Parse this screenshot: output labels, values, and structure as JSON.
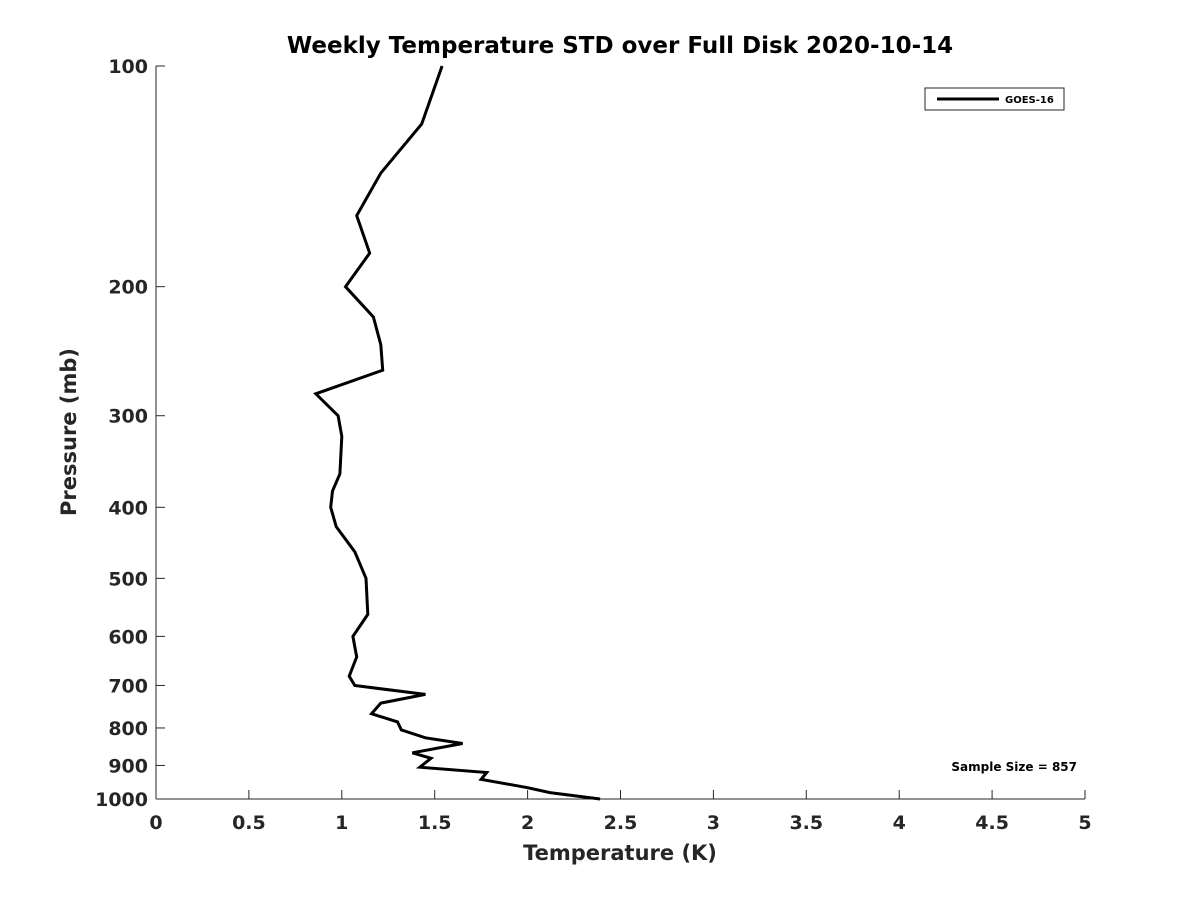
{
  "chart_data": {
    "type": "line",
    "title": "Weekly Temperature STD over Full Disk 2020-10-14",
    "xlabel": "Temperature (K)",
    "ylabel": "Pressure (mb)",
    "xlim": [
      0,
      5
    ],
    "ylim": [
      100,
      1000
    ],
    "yscale": "log",
    "y_reversed": true,
    "grid": false,
    "xticks": [
      "0",
      "0.5",
      "1",
      "1.5",
      "2",
      "2.5",
      "3",
      "3.5",
      "4",
      "4.5",
      "5"
    ],
    "xtick_values": [
      0,
      0.5,
      1,
      1.5,
      2,
      2.5,
      3,
      3.5,
      4,
      4.5,
      5
    ],
    "yticks": [
      "100",
      "200",
      "300",
      "400",
      "500",
      "600",
      "700",
      "800",
      "900",
      "1000"
    ],
    "ytick_values": [
      100,
      200,
      300,
      400,
      500,
      600,
      700,
      800,
      900,
      1000
    ],
    "legend_position": "top-right",
    "annotation": "Sample Size = 857",
    "series": [
      {
        "name": "GOES-16",
        "color": "#000000",
        "x": [
          1.54,
          1.43,
          1.21,
          1.08,
          1.15,
          1.02,
          1.17,
          1.21,
          1.22,
          0.86,
          0.98,
          1.0,
          0.99,
          0.95,
          0.94,
          0.97,
          1.07,
          1.13,
          1.14,
          1.06,
          1.07,
          1.08,
          1.04,
          1.07,
          1.45,
          1.21,
          1.16,
          1.3,
          1.32,
          1.45,
          1.65,
          1.38,
          1.48,
          1.42,
          1.78,
          1.75,
          2.0,
          2.12,
          2.39
        ],
        "y": [
          100,
          120,
          140,
          160,
          180,
          200,
          220,
          240,
          260,
          280,
          300,
          320,
          360,
          380,
          400,
          425,
          460,
          500,
          560,
          600,
          620,
          640,
          680,
          700,
          720,
          740,
          765,
          785,
          805,
          825,
          840,
          865,
          880,
          905,
          920,
          940,
          965,
          980,
          1000
        ]
      }
    ]
  }
}
